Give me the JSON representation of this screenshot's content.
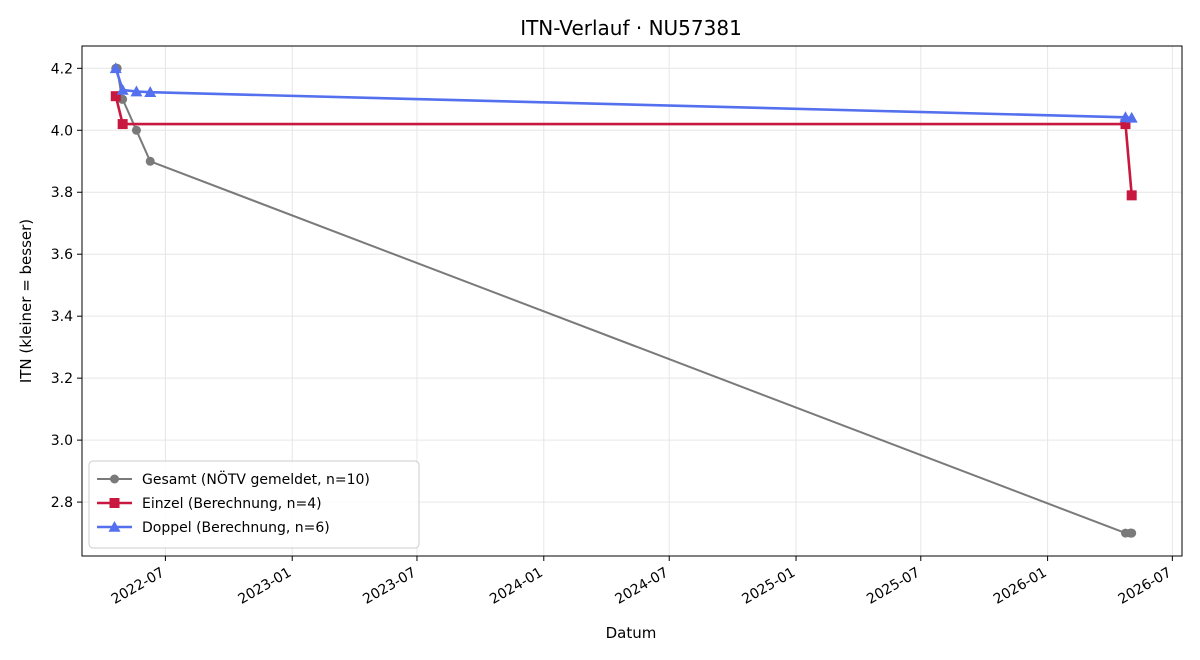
{
  "chart_data": {
    "type": "line",
    "title": "ITN-Verlauf · NU57381",
    "xlabel": "Datum",
    "ylabel": "ITN  (kleiner = besser)",
    "xlim": [
      "2022-03-02",
      "2026-07-15"
    ],
    "ylim": [
      2.626,
      4.272
    ],
    "yticks": [
      2.8,
      3.0,
      3.2,
      3.4,
      3.6,
      3.8,
      4.0,
      4.2
    ],
    "ytick_labels": [
      "2.8",
      "3.0",
      "3.2",
      "3.4",
      "3.6",
      "3.8",
      "4.0",
      "4.2"
    ],
    "xticks": [
      "2022-07-01",
      "2023-01-01",
      "2023-07-01",
      "2024-01-01",
      "2024-07-01",
      "2025-01-01",
      "2025-07-01",
      "2026-01-01",
      "2026-07-01"
    ],
    "xtick_labels": [
      "2022-07",
      "2023-01",
      "2023-07",
      "2024-01",
      "2024-07",
      "2025-01",
      "2025-07",
      "2026-01",
      "2026-07"
    ],
    "grid": true,
    "legend_position": "lower-left",
    "series": [
      {
        "name": "Gesamt (NÖTV gemeldet, n=10)",
        "color": "#555555",
        "marker": "circle",
        "x": [
          "2022-04-20",
          "2022-04-22",
          "2022-04-29",
          "2022-04-30",
          "2022-05-20",
          "2022-06-09",
          "2026-04-24",
          "2026-05-01",
          "2026-05-02",
          "2026-05-03"
        ],
        "y": [
          4.2,
          4.2,
          4.1,
          4.1,
          4.0,
          3.9,
          2.7,
          2.7,
          2.7,
          2.7
        ]
      },
      {
        "name": "Einzel (Berechnung, n=4)",
        "color": "#c8183f",
        "marker": "square",
        "x": [
          "2022-04-20",
          "2022-04-30",
          "2026-04-24",
          "2026-05-03"
        ],
        "y": [
          4.11,
          4.02,
          4.02,
          3.79
        ]
      },
      {
        "name": "Doppel (Berechnung, n=6)",
        "color": "#5470ee",
        "marker": "triangle",
        "x": [
          "2022-04-20",
          "2022-04-30",
          "2022-05-20",
          "2022-06-09",
          "2026-04-24",
          "2026-05-03"
        ],
        "y": [
          4.2,
          4.13,
          4.125,
          4.123,
          4.042,
          4.04
        ]
      }
    ]
  }
}
